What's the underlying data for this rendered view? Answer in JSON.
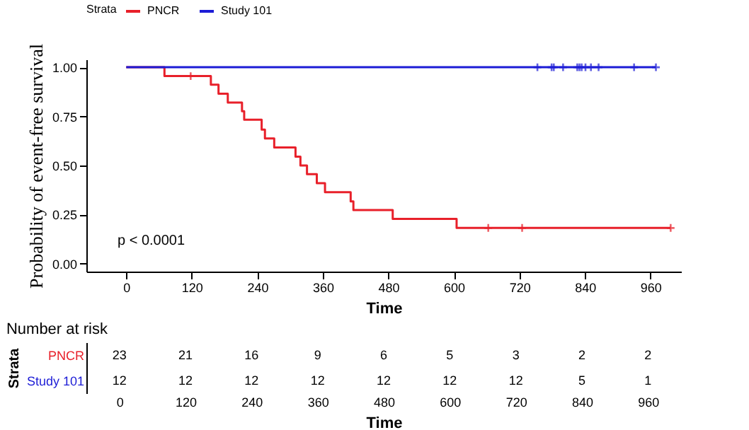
{
  "chart_data": [
    {
      "type": "step",
      "xlabel": "Time",
      "ylabel": "Probability of event-free survival",
      "legend_title": "Strata",
      "legend": "top",
      "grid": false,
      "xlim": [
        -73,
        1016
      ],
      "xticks": [
        0,
        120,
        240,
        360,
        480,
        600,
        720,
        840,
        960
      ],
      "ylim": [
        -0.04,
        1.04
      ],
      "yticks": [
        {
          "value": 0,
          "label": "0.00"
        },
        {
          "value": 0.25,
          "label": "0.25"
        },
        {
          "value": 0.5,
          "label": "0.50"
        },
        {
          "value": 0.75,
          "label": "0.75"
        },
        {
          "value": 1,
          "label": "1.00"
        }
      ],
      "annotations": [
        "p < 0.0001"
      ],
      "series": [
        {
          "name": "PNCR",
          "color": "#e8202a",
          "x": [
            0,
            70,
            155,
            169,
            186,
            212,
            216,
            248,
            254,
            271,
            310,
            319,
            331,
            349,
            364,
            411,
            416,
            488,
            605,
            997
          ],
          "values": [
            1,
            0.955,
            0.911,
            0.865,
            0.82,
            0.776,
            0.733,
            0.683,
            0.638,
            0.592,
            0.545,
            0.5,
            0.456,
            0.41,
            0.364,
            0.317,
            0.273,
            0.228,
            0.182,
            0.182
          ]
        },
        {
          "name": "Study 101",
          "color": "#1c1cd6",
          "x": [
            0,
            970
          ],
          "values": [
            1,
            1
          ]
        },
        {
          "type": "scatter",
          "marker": "cross",
          "color": "#e8202a",
          "x": [
            118,
            663,
            725,
            997
          ],
          "values": [
            0.955,
            0.182,
            0.182,
            0.182
          ]
        },
        {
          "type": "scatter",
          "marker": "cross",
          "color": "#1c1cd6",
          "x": [
            753,
            779,
            783,
            800,
            826,
            830,
            834,
            841,
            851,
            865,
            930,
            970
          ],
          "values": [
            1,
            1,
            1,
            1,
            1,
            1,
            1,
            1,
            1,
            1,
            1,
            1
          ]
        }
      ]
    },
    {
      "type": "heatmap",
      "title": "Number at risk",
      "data_labels": true,
      "xlabel": "Time",
      "ylabel": "Strata",
      "categories": [
        "0",
        "120",
        "240",
        "360",
        "480",
        "600",
        "720",
        "840",
        "960"
      ],
      "y_categories": [
        "PNCR",
        "Study 101"
      ],
      "cells": [
        [
          23,
          21,
          16,
          9,
          6,
          5,
          3,
          2,
          2
        ],
        [
          12,
          12,
          12,
          12,
          12,
          12,
          12,
          5,
          1
        ]
      ]
    }
  ]
}
